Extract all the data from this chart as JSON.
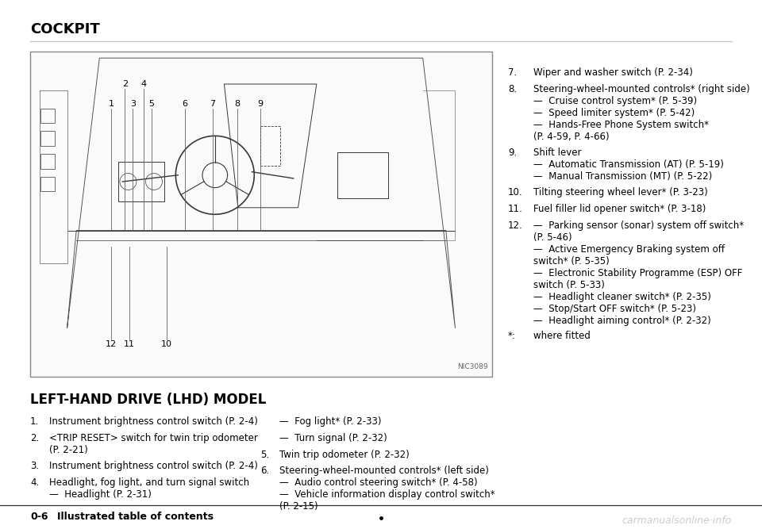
{
  "bg_color": "#ffffff",
  "page_title": "COCKPIT",
  "page_title_font_size": 13,
  "text_color": "#000000",
  "box_border_color": "#888888",
  "item_font_size": 8.5,
  "footer_font_size": 9,
  "image_label": "NIC3089",
  "footer_left": "0-6",
  "footer_title": "Illustrated table of contents",
  "footer_right": "carmanualsonline·info",
  "section_title": "LEFT-HAND DRIVE (LHD) MODEL",
  "left_col_items": [
    {
      "num": "1.",
      "text": "Instrument brightness control switch (P. 2-4)"
    },
    {
      "num": "2.",
      "text": "<TRIP RESET> switch for twin trip odometer\n(P. 2-21)"
    },
    {
      "num": "3.",
      "text": "Instrument brightness control switch (P. 2-4)"
    },
    {
      "num": "4.",
      "text": "Headlight, fog light, and turn signal switch\n—  Headlight (P. 2-31)"
    }
  ],
  "right_col_items": [
    {
      "num": null,
      "text": "—  Fog light* (P. 2-33)"
    },
    {
      "num": null,
      "text": "—  Turn signal (P. 2-32)"
    },
    {
      "num": "5.",
      "text": "Twin trip odometer (P. 2-32)"
    },
    {
      "num": "6.",
      "text": "Steering-wheel-mounted controls* (left side)\n—  Audio control steering switch* (P. 4-58)\n—  Vehicle information display control switch*\n(P. 2-15)"
    }
  ],
  "far_right_col_items": [
    {
      "num": "7.",
      "text": "Wiper and washer switch (P. 2-34)"
    },
    {
      "num": "8.",
      "text": "Steering-wheel-mounted controls* (right side)\n—  Cruise control system* (P. 5-39)\n—  Speed limiter system* (P. 5-42)\n—  Hands-Free Phone System switch*\n(P. 4-59, P. 4-66)"
    },
    {
      "num": "9.",
      "text": "Shift lever\n—  Automatic Transmission (AT) (P. 5-19)\n—  Manual Transmission (MT) (P. 5-22)"
    },
    {
      "num": "10.",
      "text": "Tilting steering wheel lever* (P. 3-23)"
    },
    {
      "num": "11.",
      "text": "Fuel filler lid opener switch* (P. 3-18)"
    },
    {
      "num": "12.",
      "text": "—  Parking sensor (sonar) system off switch*\n(P. 5-46)\n—  Active Emergency Braking system off\nswitch* (P. 5-35)\n—  Electronic Stability Programme (ESP) OFF\nswitch (P. 5-33)\n—  Headlight cleaner switch* (P. 2-35)\n—  Stop/Start OFF switch* (P. 5-23)\n—  Headlight aiming control* (P. 2-32)"
    },
    {
      "num": "*:",
      "text": "where fitted"
    }
  ]
}
